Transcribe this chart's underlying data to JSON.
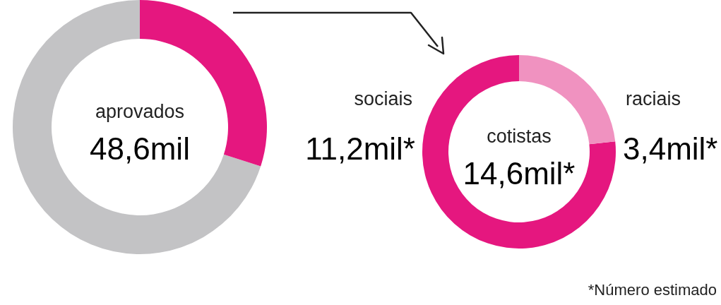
{
  "chart_data": [
    {
      "type": "donut",
      "categories": [
        null,
        null
      ],
      "values": [
        70,
        30
      ],
      "colors": [
        "#c3c3c5",
        "#e5177f"
      ],
      "annotations": [
        "aprovados",
        "48,6mil"
      ]
    },
    {
      "type": "donut",
      "categories": [
        "sociais",
        "raciais"
      ],
      "values": [
        11.2,
        3.4
      ],
      "colors": [
        "#e5177f",
        "#f092c0"
      ],
      "value_labels": [
        "11,2mil*",
        "3,4mil*"
      ],
      "annotations": [
        "cotistas",
        "14,6mil*",
        "*Número estimado"
      ]
    }
  ]
}
